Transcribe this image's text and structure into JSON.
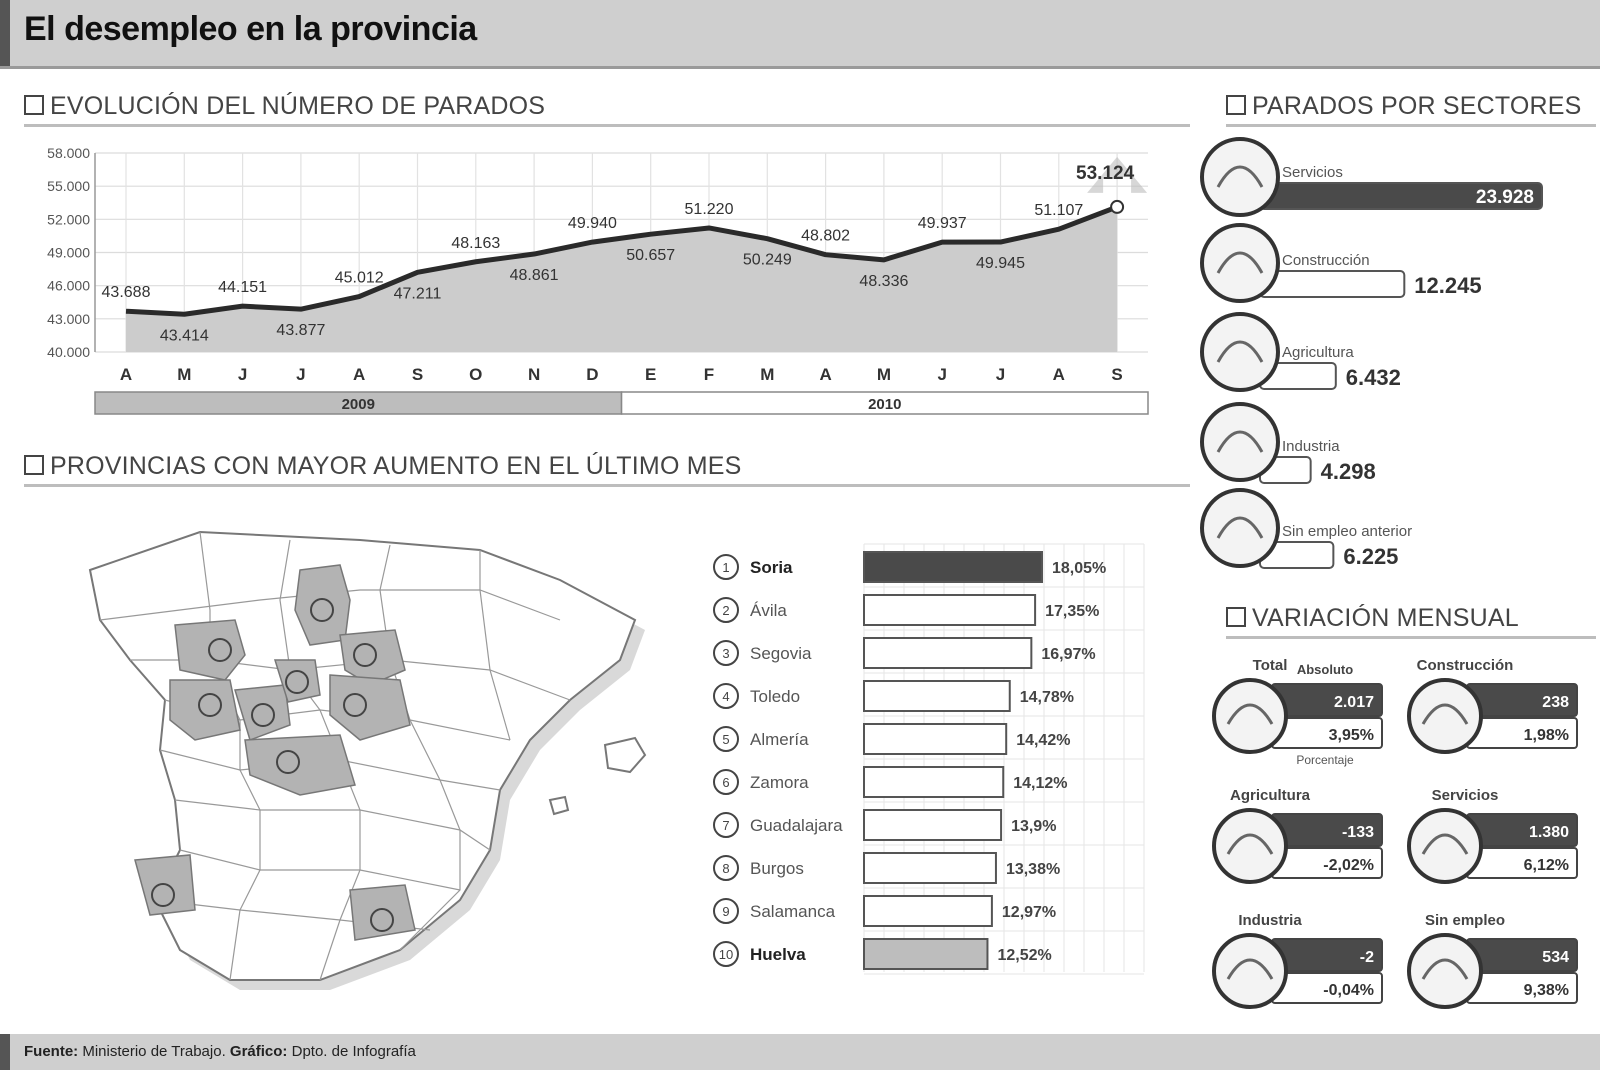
{
  "title": "El desempleo en la provincia",
  "sections": {
    "evolucion": "EVOLUCIÓN DEL NÚMERO DE PARADOS",
    "provincias": "PROVINCIAS CON MAYOR AUMENTO EN EL ÚLTIMO MES",
    "sectores": "PARADOS POR SECTORES",
    "variacion": "VARIACIÓN MENSUAL"
  },
  "chart_data": [
    {
      "type": "area",
      "title": "EVOLUCIÓN DEL NÚMERO DE PARADOS",
      "categories": [
        "A",
        "M",
        "J",
        "J",
        "A",
        "S",
        "O",
        "N",
        "D",
        "E",
        "F",
        "M",
        "A",
        "M",
        "J",
        "J",
        "A",
        "S"
      ],
      "values": [
        43688,
        43414,
        44151,
        43877,
        45012,
        47211,
        48163,
        48861,
        49940,
        50657,
        51220,
        50249,
        48802,
        48336,
        49937,
        49945,
        51107,
        53124
      ],
      "value_labels": [
        "43.688",
        "43.414",
        "44.151",
        "43.877",
        "45.012",
        "47.211",
        "48.163",
        "48.861",
        "49.940",
        "50.657",
        "51.220",
        "50.249",
        "48.802",
        "48.336",
        "49.937",
        "49.945",
        "51.107",
        "53.124"
      ],
      "yticks": [
        "58.000",
        "55.000",
        "52.000",
        "49.000",
        "46.000",
        "43.000",
        "40.000"
      ],
      "ylim": [
        40000,
        58000
      ],
      "years": [
        "2009",
        "2010"
      ],
      "grid": true
    },
    {
      "type": "bar",
      "title": "PROVINCIAS CON MAYOR AUMENTO EN EL ÚLTIMO MES",
      "categories": [
        "Soria",
        "Ávila",
        "Segovia",
        "Toledo",
        "Almería",
        "Zamora",
        "Guadalajara",
        "Burgos",
        "Salamanca",
        "Huelva"
      ],
      "values": [
        18.05,
        17.35,
        16.97,
        14.78,
        14.42,
        14.12,
        13.9,
        13.38,
        12.97,
        12.52
      ],
      "value_labels": [
        "18,05%",
        "17,35%",
        "16,97%",
        "14,78%",
        "14,42%",
        "14,12%",
        "13,9%",
        "13,38%",
        "12,97%",
        "12,52%"
      ],
      "ranks": [
        "1",
        "2",
        "3",
        "4",
        "5",
        "6",
        "7",
        "8",
        "9",
        "10"
      ]
    },
    {
      "type": "bar",
      "title": "PARADOS POR SECTORES",
      "categories": [
        "Servicios",
        "Construcción",
        "Agricultura",
        "Industria",
        "Sin empleo anterior"
      ],
      "values": [
        23928,
        12245,
        6432,
        4298,
        6225
      ],
      "value_labels": [
        "23.928",
        "12.245",
        "6.432",
        "4.298",
        "6.225"
      ]
    },
    {
      "type": "table",
      "title": "VARIACIÓN MENSUAL",
      "legend": {
        "absoluto": "Absoluto",
        "porcentaje": "Porcentaje"
      },
      "items": [
        {
          "name": "Total",
          "abs": "2.017",
          "pct": "3,95%"
        },
        {
          "name": "Construcción",
          "abs": "238",
          "pct": "1,98%"
        },
        {
          "name": "Agricultura",
          "abs": "-133",
          "pct": "-2,02%"
        },
        {
          "name": "Servicios",
          "abs": "1.380",
          "pct": "6,12%"
        },
        {
          "name": "Industria",
          "abs": "-2",
          "pct": "-0,04%"
        },
        {
          "name": "Sin empleo",
          "abs": "534",
          "pct": "9,38%"
        }
      ]
    }
  ],
  "footer": {
    "fuente_label": "Fuente:",
    "fuente": "Ministerio de Trabajo.",
    "grafico_label": "Gráfico:",
    "grafico": "Dpto. de Infografía"
  },
  "colors": {
    "header": "#cfcfcf",
    "dark_bar": "#4a4a4a",
    "light_bar": "#bdbdbd",
    "area": "#cccccc"
  }
}
